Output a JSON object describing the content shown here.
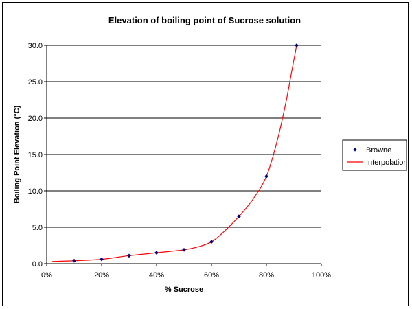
{
  "chart_data": {
    "type": "scatter",
    "title": "Elevation of boiling point of Sucrose solution",
    "xlabel": "% Sucrose",
    "ylabel": "Boiling Point Elevation (°C)",
    "xlim": [
      0,
      100
    ],
    "ylim": [
      0,
      30
    ],
    "x_ticks": [
      0,
      20,
      40,
      60,
      80,
      100
    ],
    "x_tick_labels": [
      "0%",
      "20%",
      "40%",
      "60%",
      "80%",
      "100%"
    ],
    "y_ticks": [
      0,
      5,
      10,
      15,
      20,
      25,
      30
    ],
    "y_tick_labels": [
      "0.0",
      "5.0",
      "10.0",
      "15.0",
      "20.0",
      "25.0",
      "30.0"
    ],
    "grid": "horizontal",
    "legend_position": "right",
    "series": [
      {
        "name": "Browne",
        "style": "markers",
        "color": "#000080",
        "x": [
          10,
          20,
          30,
          40,
          50,
          60,
          70,
          80,
          91
        ],
        "y": [
          0.4,
          0.6,
          1.1,
          1.5,
          1.9,
          3.0,
          6.5,
          12.0,
          30.0
        ]
      },
      {
        "name": "Interpolation",
        "style": "line",
        "color": "#ff0000",
        "x": [
          2,
          10,
          20,
          30,
          40,
          50,
          56,
          60,
          64,
          70,
          75,
          80,
          84,
          87,
          89,
          91
        ],
        "y": [
          0.3,
          0.4,
          0.6,
          1.1,
          1.5,
          1.9,
          2.4,
          3.0,
          4.2,
          6.5,
          8.8,
          12.0,
          17.0,
          22.0,
          26.0,
          30.0
        ]
      }
    ]
  }
}
